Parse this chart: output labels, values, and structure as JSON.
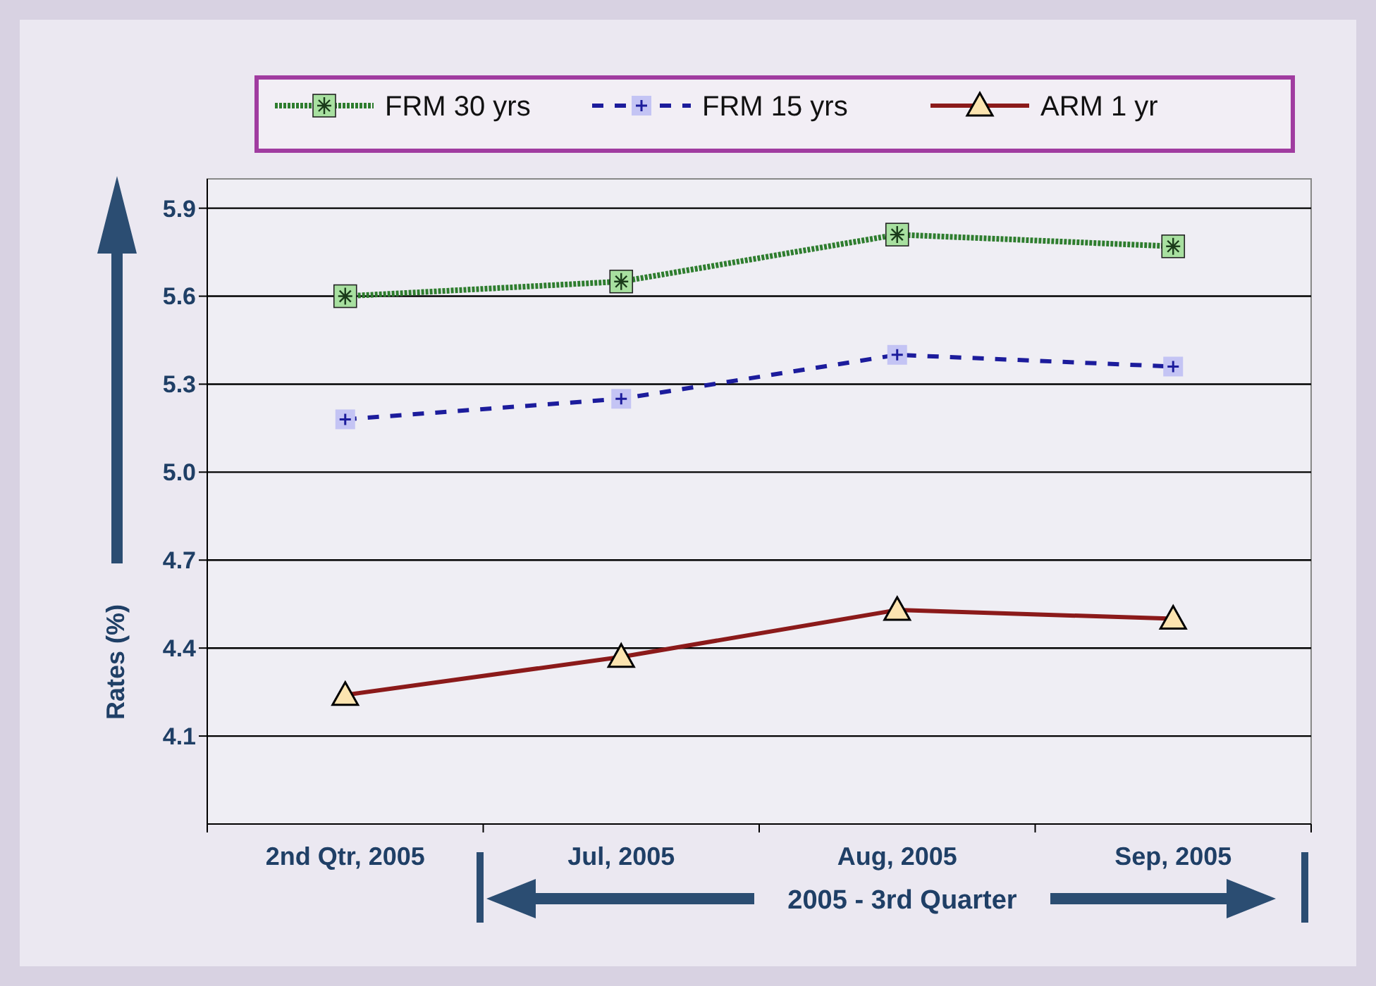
{
  "chart_data": {
    "type": "line",
    "xlabel": "2005 - 3rd Quarter",
    "ylabel": "Rates (%)",
    "categories": [
      "2nd Qtr, 2005",
      "Jul, 2005",
      "Aug, 2005",
      "Sep, 2005"
    ],
    "series": [
      {
        "name": "FRM 30 yrs",
        "color": "#2e7d2e",
        "values": [
          5.6,
          5.65,
          5.81,
          5.77
        ],
        "marker": "square",
        "line_style": "dotted"
      },
      {
        "name": "FRM 15 yrs",
        "color": "#1c1c9c",
        "values": [
          5.18,
          5.25,
          5.4,
          5.36
        ],
        "marker": "cross",
        "line_style": "dashed"
      },
      {
        "name": "ARM 1 yr",
        "color": "#8b1a1a",
        "values": [
          4.24,
          4.37,
          4.53,
          4.5
        ],
        "marker": "triangle",
        "line_style": "solid"
      }
    ],
    "ylim": [
      3.8,
      6.0
    ],
    "yticks": [
      4.1,
      4.4,
      4.7,
      {
        "value": 5,
        "label": "5.0"
      },
      5.3,
      5.6,
      5.9
    ],
    "grid": "y",
    "legend": "top"
  }
}
